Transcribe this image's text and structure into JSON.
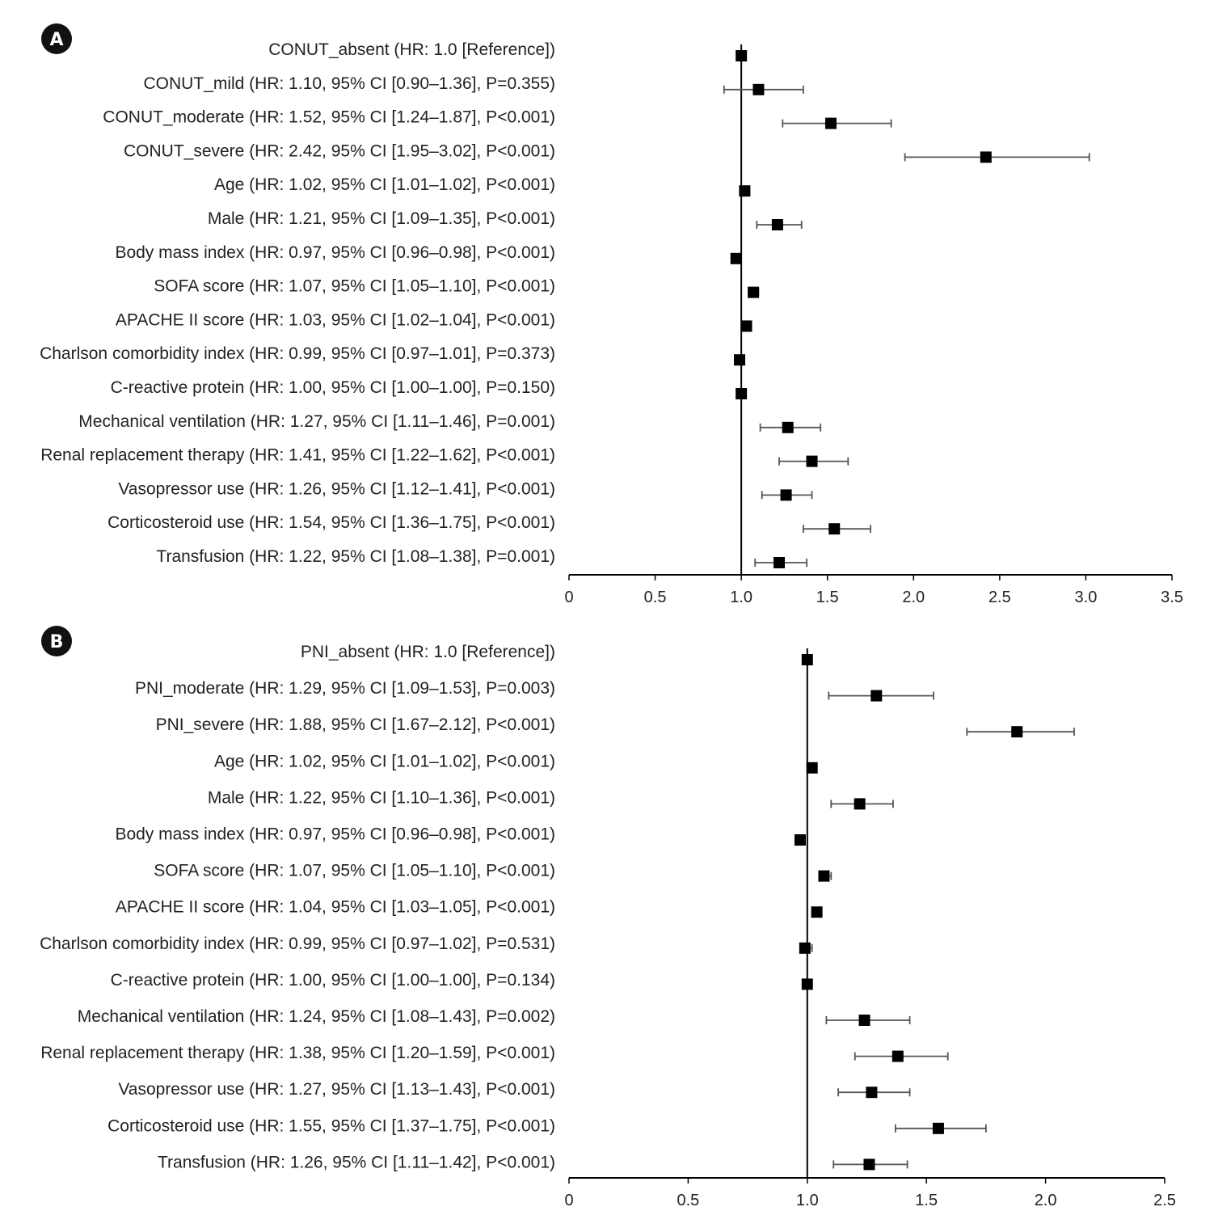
{
  "chart_data": [
    {
      "type": "forest",
      "panel": "A",
      "xlim": [
        0,
        3.5
      ],
      "ticks": [
        0,
        0.5,
        1.0,
        1.5,
        2.0,
        2.5,
        3.0,
        3.5
      ],
      "tick_labels": [
        "0",
        "0.5",
        "1.0",
        "1.5",
        "2.0",
        "2.5",
        "3.0",
        "3.5"
      ],
      "reference_line": 1.0,
      "rows": [
        {
          "label": "CONUT_absent (HR: 1.0 [Reference])",
          "hr": 1.0,
          "lo": 1.0,
          "hi": 1.0
        },
        {
          "label": "CONUT_mild (HR: 1.10, 95% CI [0.90–1.36], P=0.355)",
          "hr": 1.1,
          "lo": 0.9,
          "hi": 1.36
        },
        {
          "label": "CONUT_moderate (HR: 1.52, 95% CI [1.24–1.87], P<0.001)",
          "hr": 1.52,
          "lo": 1.24,
          "hi": 1.87
        },
        {
          "label": "CONUT_severe (HR: 2.42, 95% CI [1.95–3.02], P<0.001)",
          "hr": 2.42,
          "lo": 1.95,
          "hi": 3.02
        },
        {
          "label": "Age (HR: 1.02, 95% CI [1.01–1.02], P<0.001)",
          "hr": 1.02,
          "lo": 1.01,
          "hi": 1.02
        },
        {
          "label": "Male (HR: 1.21, 95% CI [1.09–1.35], P<0.001)",
          "hr": 1.21,
          "lo": 1.09,
          "hi": 1.35
        },
        {
          "label": "Body mass index (HR: 0.97, 95% CI [0.96–0.98], P<0.001)",
          "hr": 0.97,
          "lo": 0.96,
          "hi": 0.98
        },
        {
          "label": "SOFA score (HR: 1.07, 95% CI [1.05–1.10], P<0.001)",
          "hr": 1.07,
          "lo": 1.05,
          "hi": 1.1
        },
        {
          "label": "APACHE II score (HR: 1.03, 95% CI [1.02–1.04], P<0.001)",
          "hr": 1.03,
          "lo": 1.02,
          "hi": 1.04
        },
        {
          "label": "Charlson comorbidity index (HR: 0.99, 95% CI [0.97–1.01], P=0.373)",
          "hr": 0.99,
          "lo": 0.97,
          "hi": 1.01
        },
        {
          "label": "C-reactive protein (HR: 1.00, 95% CI [1.00–1.00], P=0.150)",
          "hr": 1.0,
          "lo": 1.0,
          "hi": 1.0
        },
        {
          "label": "Mechanical ventilation (HR: 1.27, 95% CI [1.11–1.46], P=0.001)",
          "hr": 1.27,
          "lo": 1.11,
          "hi": 1.46
        },
        {
          "label": "Renal replacement therapy (HR: 1.41, 95% CI [1.22–1.62], P<0.001)",
          "hr": 1.41,
          "lo": 1.22,
          "hi": 1.62
        },
        {
          "label": "Vasopressor use (HR: 1.26, 95% CI [1.12–1.41], P<0.001)",
          "hr": 1.26,
          "lo": 1.12,
          "hi": 1.41
        },
        {
          "label": "Corticosteroid use (HR: 1.54, 95% CI [1.36–1.75], P<0.001)",
          "hr": 1.54,
          "lo": 1.36,
          "hi": 1.75
        },
        {
          "label": "Transfusion (HR: 1.22, 95% CI [1.08–1.38], P=0.001)",
          "hr": 1.22,
          "lo": 1.08,
          "hi": 1.38
        }
      ]
    },
    {
      "type": "forest",
      "panel": "B",
      "xlim": [
        0,
        2.5
      ],
      "ticks": [
        0,
        0.5,
        1.0,
        1.5,
        2.0,
        2.5
      ],
      "tick_labels": [
        "0",
        "0.5",
        "1.0",
        "1.5",
        "2.0",
        "2.5"
      ],
      "reference_line": 1.0,
      "rows": [
        {
          "label": "PNI_absent (HR: 1.0 [Reference])",
          "hr": 1.0,
          "lo": 1.0,
          "hi": 1.0
        },
        {
          "label": "PNI_moderate (HR: 1.29, 95% CI [1.09–1.53], P=0.003)",
          "hr": 1.29,
          "lo": 1.09,
          "hi": 1.53
        },
        {
          "label": "PNI_severe (HR: 1.88, 95% CI [1.67–2.12], P<0.001)",
          "hr": 1.88,
          "lo": 1.67,
          "hi": 2.12
        },
        {
          "label": "Age (HR: 1.02, 95% CI [1.01–1.02], P<0.001)",
          "hr": 1.02,
          "lo": 1.01,
          "hi": 1.02
        },
        {
          "label": "Male (HR: 1.22, 95% CI [1.10–1.36], P<0.001)",
          "hr": 1.22,
          "lo": 1.1,
          "hi": 1.36
        },
        {
          "label": "Body mass index (HR: 0.97, 95% CI [0.96–0.98], P<0.001)",
          "hr": 0.97,
          "lo": 0.96,
          "hi": 0.98
        },
        {
          "label": "SOFA score (HR: 1.07, 95% CI [1.05–1.10], P<0.001)",
          "hr": 1.07,
          "lo": 1.05,
          "hi": 1.1
        },
        {
          "label": "APACHE II score (HR: 1.04, 95% CI [1.03–1.05], P<0.001)",
          "hr": 1.04,
          "lo": 1.03,
          "hi": 1.05
        },
        {
          "label": "Charlson comorbidity index (HR: 0.99, 95% CI [0.97–1.02], P=0.531)",
          "hr": 0.99,
          "lo": 0.97,
          "hi": 1.02
        },
        {
          "label": "C-reactive protein (HR: 1.00, 95% CI [1.00–1.00], P=0.134)",
          "hr": 1.0,
          "lo": 1.0,
          "hi": 1.0
        },
        {
          "label": "Mechanical ventilation (HR: 1.24, 95% CI [1.08–1.43], P=0.002)",
          "hr": 1.24,
          "lo": 1.08,
          "hi": 1.43
        },
        {
          "label": "Renal replacement therapy (HR: 1.38, 95% CI [1.20–1.59], P<0.001)",
          "hr": 1.38,
          "lo": 1.2,
          "hi": 1.59
        },
        {
          "label": "Vasopressor use (HR: 1.27, 95% CI [1.13–1.43], P<0.001)",
          "hr": 1.27,
          "lo": 1.13,
          "hi": 1.43
        },
        {
          "label": "Corticosteroid use (HR: 1.55, 95% CI [1.37–1.75], P<0.001)",
          "hr": 1.55,
          "lo": 1.37,
          "hi": 1.75
        },
        {
          "label": "Transfusion (HR: 1.26, 95% CI [1.11–1.42], P<0.001)",
          "hr": 1.26,
          "lo": 1.11,
          "hi": 1.42
        }
      ]
    }
  ],
  "colors": {
    "marker": "#000000",
    "whisker": "#555555",
    "axis": "#000000",
    "badge": "#111111"
  }
}
